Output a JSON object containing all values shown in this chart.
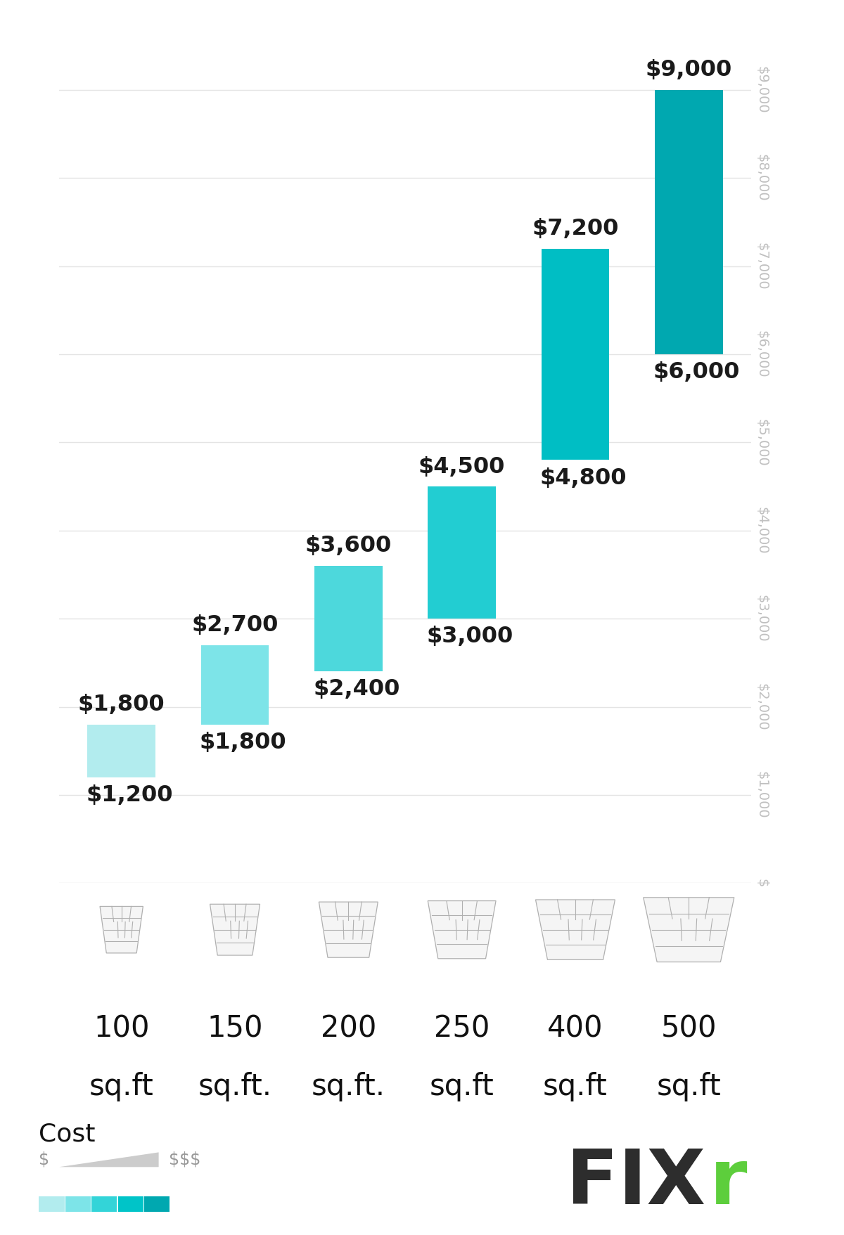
{
  "categories": [
    "100\nsq.ft",
    "150\nsq.ft.",
    "200\nsq.ft.",
    "250\nsq.ft",
    "400\nsq.ft",
    "500\nsq.ft"
  ],
  "bar_min": [
    1200,
    1800,
    2400,
    3000,
    4800,
    6000
  ],
  "bar_max": [
    1800,
    2700,
    3600,
    4500,
    7200,
    9000
  ],
  "bar_colors": [
    "#b2ecee",
    "#7de4e8",
    "#4dd8dc",
    "#22cdd2",
    "#00bec4",
    "#00a8b0"
  ],
  "yticks": [
    0,
    1000,
    2000,
    3000,
    4000,
    5000,
    6000,
    7000,
    8000,
    9000
  ],
  "ytick_labels": [
    "$",
    "$1,000",
    "$2,000",
    "$3,000",
    "$4,000",
    "$5,000",
    "$6,000",
    "$7,000",
    "$8,000",
    "$9,000"
  ],
  "ymax": 9600,
  "grid_color": "#e4e4e4",
  "label_color": "#1a1a1a",
  "axis_label_color": "#c0c0c0",
  "label_fontsize": 23,
  "tick_fontsize": 14,
  "cat_fontsize": 30,
  "legend_colors": [
    "#b2ecee",
    "#7de4e8",
    "#33d4d8",
    "#00c4c8",
    "#00a8b0"
  ],
  "fixr_dark": "#2d2d2d",
  "fixr_green": "#5dce3c"
}
